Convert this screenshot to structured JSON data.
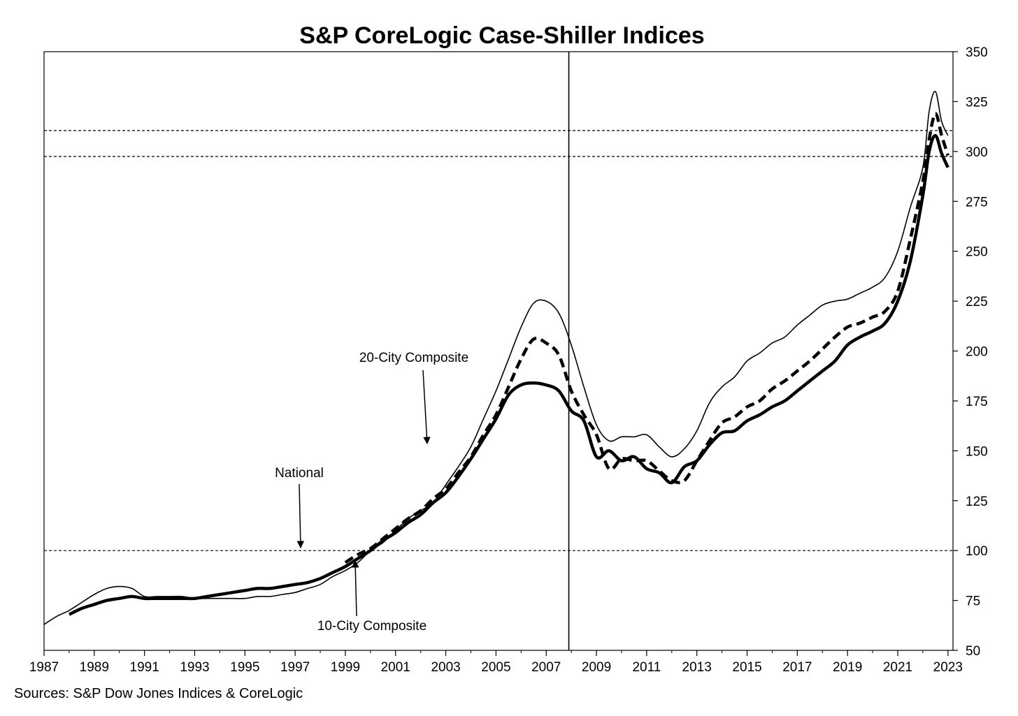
{
  "chart_data": {
    "type": "line",
    "title": "S&P CoreLogic Case-Shiller Indices",
    "source": "Sources:  S&P Dow Jones Indices & CoreLogic",
    "xlabel": "",
    "ylabel": "",
    "xlim": [
      1987,
      2023.2
    ],
    "ylim": [
      50,
      350
    ],
    "x_ticks": [
      "1987",
      "1989",
      "1991",
      "1993",
      "1995",
      "1997",
      "1999",
      "2001",
      "2003",
      "2005",
      "2007",
      "2009",
      "2011",
      "2013",
      "2015",
      "2017",
      "2019",
      "2021",
      "2023"
    ],
    "y_ticks": [
      "50",
      "75",
      "100",
      "125",
      "150",
      "175",
      "200",
      "225",
      "250",
      "275",
      "300",
      "325",
      "350"
    ],
    "y_axis_side": "right",
    "grid": false,
    "reference_lines": {
      "horizontal": [
        100,
        297.5,
        310.5
      ],
      "vertical": [
        2007.9
      ]
    },
    "series": [
      {
        "name": "National",
        "style": "thin",
        "x": [
          1987.0,
          1987.5,
          1988.0,
          1988.5,
          1989.0,
          1989.5,
          1990.0,
          1990.5,
          1991.0,
          1991.5,
          1992.0,
          1992.5,
          1993.0,
          1993.5,
          1994.0,
          1994.5,
          1995.0,
          1995.5,
          1996.0,
          1996.5,
          1997.0,
          1997.5,
          1998.0,
          1998.5,
          1999.0,
          1999.5,
          2000.0,
          2000.5,
          2001.0,
          2001.5,
          2002.0,
          2002.5,
          2003.0,
          2003.5,
          2004.0,
          2004.5,
          2005.0,
          2005.5,
          2006.0,
          2006.5,
          2007.0,
          2007.5,
          2008.0,
          2008.5,
          2009.0,
          2009.5,
          2010.0,
          2010.5,
          2011.0,
          2011.5,
          2012.0,
          2012.5,
          2013.0,
          2013.5,
          2014.0,
          2014.5,
          2015.0,
          2015.5,
          2016.0,
          2016.5,
          2017.0,
          2017.5,
          2018.0,
          2018.5,
          2019.0,
          2019.5,
          2020.0,
          2020.5,
          2021.0,
          2021.5,
          2022.0,
          2022.25,
          2022.5,
          2022.75,
          2023.0
        ],
        "values": [
          63,
          67,
          70,
          74,
          78,
          81,
          82,
          81,
          77,
          77,
          77,
          77,
          76,
          76,
          76,
          76,
          76,
          77,
          77,
          78,
          79,
          81,
          83,
          87,
          90,
          94,
          100,
          104,
          110,
          116,
          120,
          124,
          133,
          142,
          152,
          166,
          180,
          196,
          212,
          224,
          225,
          219,
          203,
          182,
          163,
          155,
          157,
          157,
          158,
          152,
          147,
          151,
          160,
          174,
          182,
          187,
          195,
          199,
          204,
          207,
          213,
          218,
          223,
          225,
          226,
          229,
          232,
          237,
          250,
          272,
          292,
          320,
          330,
          315,
          308
        ]
      },
      {
        "name": "20-City Composite",
        "style": "dashed",
        "x": [
          1999.0,
          1999.5,
          2000.0,
          2000.5,
          2001.0,
          2001.5,
          2002.0,
          2002.5,
          2003.0,
          2003.5,
          2004.0,
          2004.5,
          2005.0,
          2005.5,
          2006.0,
          2006.5,
          2007.0,
          2007.5,
          2008.0,
          2008.5,
          2009.0,
          2009.5,
          2010.0,
          2010.5,
          2011.0,
          2011.5,
          2012.0,
          2012.5,
          2013.0,
          2013.5,
          2014.0,
          2014.5,
          2015.0,
          2015.5,
          2016.0,
          2016.5,
          2017.0,
          2017.5,
          2018.0,
          2018.5,
          2019.0,
          2019.5,
          2020.0,
          2020.5,
          2021.0,
          2021.5,
          2022.0,
          2022.25,
          2022.5,
          2022.75,
          2023.0
        ],
        "values": [
          94,
          98,
          101,
          106,
          111,
          116,
          120,
          126,
          131,
          139,
          147,
          158,
          168,
          182,
          196,
          206,
          204,
          198,
          180,
          168,
          158,
          141,
          146,
          145,
          145,
          140,
          135,
          135,
          145,
          155,
          164,
          167,
          172,
          175,
          181,
          185,
          190,
          195,
          201,
          207,
          212,
          214,
          217,
          220,
          230,
          256,
          285,
          306,
          319,
          308,
          298
        ]
      },
      {
        "name": "10-City Composite",
        "style": "thick",
        "x": [
          1988.0,
          1988.5,
          1989.0,
          1989.5,
          1990.0,
          1990.5,
          1991.0,
          1991.5,
          1992.0,
          1992.5,
          1993.0,
          1993.5,
          1994.0,
          1994.5,
          1995.0,
          1995.5,
          1996.0,
          1996.5,
          1997.0,
          1997.5,
          1998.0,
          1998.5,
          1999.0,
          1999.5,
          2000.0,
          2000.5,
          2001.0,
          2001.5,
          2002.0,
          2002.5,
          2003.0,
          2003.5,
          2004.0,
          2004.5,
          2005.0,
          2005.5,
          2006.0,
          2006.5,
          2007.0,
          2007.5,
          2008.0,
          2008.5,
          2009.0,
          2009.5,
          2010.0,
          2010.5,
          2011.0,
          2011.5,
          2012.0,
          2012.5,
          2013.0,
          2013.5,
          2014.0,
          2014.5,
          2015.0,
          2015.5,
          2016.0,
          2016.5,
          2017.0,
          2017.5,
          2018.0,
          2018.5,
          2019.0,
          2019.5,
          2020.0,
          2020.5,
          2021.0,
          2021.5,
          2022.0,
          2022.25,
          2022.5,
          2022.75,
          2023.0
        ],
        "values": [
          68,
          71,
          73,
          75,
          76,
          77,
          76,
          76,
          76,
          76,
          76,
          77,
          78,
          79,
          80,
          81,
          81,
          82,
          83,
          84,
          86,
          89,
          92,
          96,
          100,
          105,
          109,
          114,
          118,
          124,
          129,
          137,
          146,
          156,
          166,
          178,
          183,
          184,
          183,
          180,
          170,
          165,
          147,
          150,
          145,
          147,
          141,
          139,
          134,
          142,
          145,
          153,
          159,
          160,
          165,
          168,
          172,
          175,
          180,
          185,
          190,
          195,
          203,
          207,
          210,
          214,
          225,
          245,
          278,
          300,
          308,
          299,
          292
        ]
      }
    ],
    "annotations": {
      "national": "National",
      "city20": "20-City Composite",
      "city10": "10-City Composite"
    }
  }
}
